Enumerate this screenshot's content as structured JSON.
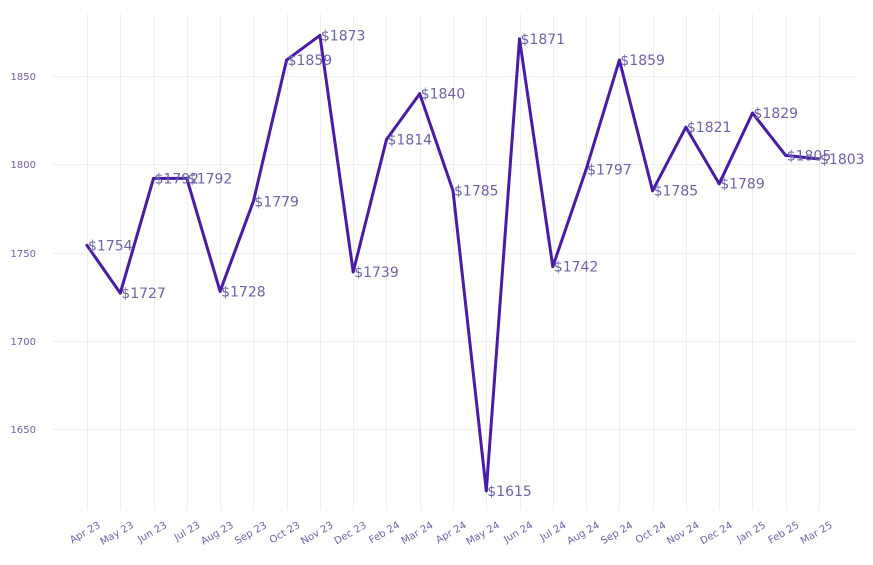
{
  "chart_data": {
    "type": "line",
    "title": "",
    "xlabel": "",
    "ylabel": "",
    "categories": [
      "Apr 23",
      "May 23",
      "Jun 23",
      "Jul 23",
      "Aug 23",
      "Sep 23",
      "Oct 23",
      "Nov 23",
      "Dec 23",
      "Feb 24",
      "Mar 24",
      "Apr 24",
      "May 24",
      "Jun 24",
      "Jul 24",
      "Aug 24",
      "Sep 24",
      "Oct 24",
      "Nov 24",
      "Dec 24",
      "Jan 25",
      "Feb 25",
      "Mar 25"
    ],
    "values": [
      1754,
      1727,
      1792,
      1792,
      1728,
      1779,
      1859,
      1873,
      1739,
      1814,
      1840,
      1785,
      1615,
      1871,
      1742,
      1797,
      1859,
      1785,
      1821,
      1789,
      1829,
      1805,
      1803
    ],
    "data_labels": [
      "$1754",
      "$1727",
      "$1792",
      "$1792",
      "$1728",
      "$1779",
      "$1859",
      "$1873",
      "$1739",
      "$1814",
      "$1840",
      "$1785",
      "$1615",
      "$1871",
      "$1742",
      "$1797",
      "$1859",
      "$1785",
      "$1821",
      "$1789",
      "$1829",
      "$1805",
      "$1803"
    ],
    "yticks": [
      1650,
      1700,
      1750,
      1800,
      1850
    ],
    "ylim": [
      1601.7,
      1886.2
    ],
    "grid": true,
    "line_color": "#4a1aa8",
    "label_color": "#6a64a8"
  }
}
